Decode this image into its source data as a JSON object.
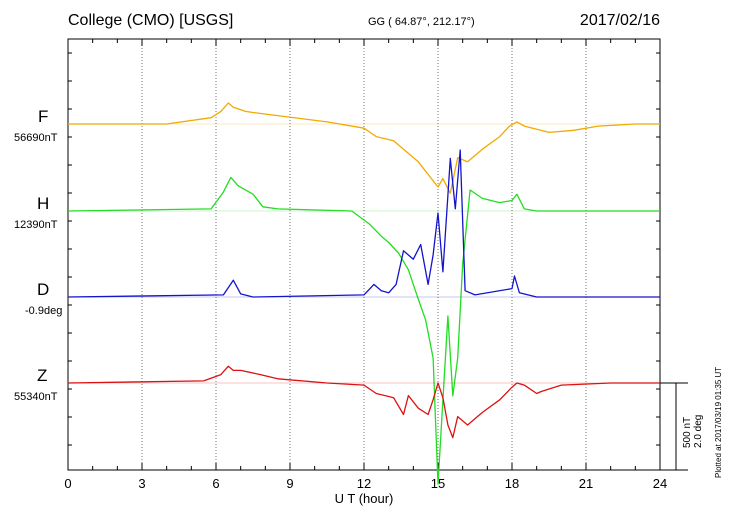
{
  "header": {
    "title": "College (CMO)  [USGS]",
    "coords": "GG ( 64.87°, 212.17°)",
    "date": "2017/02/16"
  },
  "scale": {
    "nt": "500 nT",
    "deg": "2.0 deg"
  },
  "plotted": "Plotted at 2017/03/19 01:35 UT",
  "chart_data": {
    "type": "line",
    "xlabel": "U T (hour)",
    "xlim": [
      0,
      24
    ],
    "xticks": [
      "0",
      "3",
      "6",
      "9",
      "12",
      "15",
      "18",
      "21",
      "24"
    ],
    "grid": true,
    "series": [
      {
        "name": "F",
        "baseline": "56690nT",
        "color": "#f0aa00",
        "x": [
          0,
          4,
          5.8,
          6.2,
          6.5,
          6.7,
          7.2,
          7.5,
          8.5,
          10.5,
          12,
          12.5,
          13.2,
          13.8,
          14.2,
          14.6,
          15,
          15.2,
          15.5,
          15.8,
          16.2,
          16.8,
          17.5,
          17.9,
          18.2,
          18.5,
          19.5,
          20.5,
          21.5,
          23,
          24
        ],
        "y": [
          0,
          0,
          30,
          60,
          100,
          80,
          60,
          55,
          40,
          10,
          -20,
          -60,
          -80,
          -140,
          -180,
          -240,
          -300,
          -260,
          -330,
          -160,
          -180,
          -120,
          -60,
          -10,
          10,
          -10,
          -40,
          -30,
          -10,
          0,
          0
        ]
      },
      {
        "name": "H",
        "baseline": "12390nT",
        "color": "#22dd22",
        "x": [
          0,
          5.8,
          6.3,
          6.6,
          6.9,
          7.5,
          7.9,
          8.5,
          11.5,
          12.2,
          12.7,
          13,
          13.4,
          13.8,
          14.2,
          14.5,
          14.8,
          15,
          15.2,
          15.4,
          15.6,
          15.8,
          16,
          16.3,
          16.8,
          17.5,
          18,
          18.2,
          18.5,
          19,
          20,
          24
        ],
        "y": [
          0,
          10,
          90,
          160,
          120,
          80,
          20,
          10,
          0,
          -60,
          -120,
          -150,
          -200,
          -280,
          -420,
          -520,
          -700,
          -1300,
          -900,
          -500,
          -880,
          -700,
          -250,
          100,
          60,
          40,
          50,
          80,
          10,
          0,
          0,
          0
        ]
      },
      {
        "name": "D",
        "baseline": "-0.9deg",
        "color": "#1414cc",
        "x": [
          0,
          6.3,
          6.7,
          7,
          7.5,
          12,
          12.4,
          12.7,
          13,
          13.3,
          13.6,
          14,
          14.3,
          14.6,
          14.8,
          15,
          15.2,
          15.5,
          15.7,
          15.9,
          16.1,
          16.5,
          18,
          18.1,
          18.3,
          19,
          20,
          24
        ],
        "y": [
          0,
          10,
          80,
          15,
          0,
          10,
          60,
          30,
          20,
          60,
          220,
          180,
          250,
          60,
          200,
          400,
          120,
          660,
          420,
          700,
          30,
          10,
          40,
          100,
          20,
          0,
          0,
          0
        ]
      },
      {
        "name": "Z",
        "baseline": "55340nT",
        "color": "#dd1111",
        "x": [
          0,
          5.5,
          6.2,
          6.5,
          6.7,
          7,
          7.8,
          8.5,
          10.5,
          12,
          12.5,
          13.2,
          13.6,
          13.8,
          14.2,
          14.6,
          14.8,
          15,
          15.2,
          15.4,
          15.6,
          15.8,
          16.2,
          16.8,
          17.5,
          18,
          18.2,
          18.5,
          19,
          19.2,
          20,
          22,
          24
        ],
        "y": [
          0,
          10,
          40,
          80,
          60,
          60,
          40,
          20,
          0,
          -10,
          -50,
          -70,
          -150,
          -60,
          -120,
          -150,
          -80,
          0,
          -70,
          -200,
          -260,
          -160,
          -200,
          -140,
          -80,
          -20,
          0,
          -10,
          -50,
          -40,
          -10,
          0,
          0
        ]
      }
    ]
  }
}
